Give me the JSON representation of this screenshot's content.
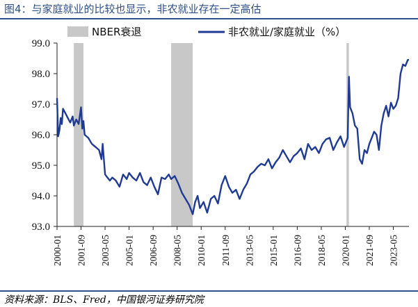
{
  "figure": {
    "title": "图4：与家庭就业的比较也显示，非农就业存在一定高估",
    "source": "资料来源：BLS、Fred，中国银河证券研究院"
  },
  "chart_data": {
    "type": "line",
    "xlabel": "",
    "ylabel": "",
    "ylim": [
      93.0,
      99.0
    ],
    "yticks": [
      "93.0",
      "94.0",
      "95.0",
      "96.0",
      "97.0",
      "98.0",
      "99.0"
    ],
    "xrange": [
      "2000-01",
      "2024-06"
    ],
    "xticks": [
      "2000-01",
      "2001-09",
      "2003-05",
      "2005-01",
      "2006-09",
      "2008-05",
      "2010-01",
      "2011-09",
      "2013-05",
      "2015-01",
      "2016-09",
      "2018-05",
      "2020-01",
      "2021-09",
      "2023-05"
    ],
    "grid": false,
    "legend_position": "top",
    "legend": [
      "NBER衰退",
      "非农就业/家庭就业（%）"
    ],
    "colors": {
      "series": "#1f3a93",
      "recession": "#c8c8c8",
      "accent": "#2e4f8a"
    },
    "recessions": [
      {
        "name": "NBER衰退",
        "start": "2001-03",
        "end": "2001-11"
      },
      {
        "name": "NBER衰退",
        "start": "2007-12",
        "end": "2009-06"
      },
      {
        "name": "NBER衰退",
        "start": "2020-02",
        "end": "2020-04"
      }
    ],
    "series": [
      {
        "name": "非农就业/家庭就业（%）",
        "points": [
          [
            "2000-01",
            97.2
          ],
          [
            "2000-02",
            95.95
          ],
          [
            "2000-03",
            96.15
          ],
          [
            "2000-04",
            96.55
          ],
          [
            "2000-05",
            96.35
          ],
          [
            "2000-06",
            96.85
          ],
          [
            "2000-08",
            96.7
          ],
          [
            "2000-10",
            96.55
          ],
          [
            "2000-12",
            96.4
          ],
          [
            "2001-02",
            96.6
          ],
          [
            "2001-03",
            96.3
          ],
          [
            "2001-05",
            96.5
          ],
          [
            "2001-07",
            96.35
          ],
          [
            "2001-09",
            96.9
          ],
          [
            "2001-10",
            96.2
          ],
          [
            "2001-11",
            96.45
          ],
          [
            "2001-12",
            96.0
          ],
          [
            "2002-03",
            95.9
          ],
          [
            "2002-06",
            95.7
          ],
          [
            "2002-09",
            95.6
          ],
          [
            "2002-12",
            95.5
          ],
          [
            "2003-02",
            95.2
          ],
          [
            "2003-03",
            95.7
          ],
          [
            "2003-05",
            94.7
          ],
          [
            "2003-07",
            94.6
          ],
          [
            "2003-09",
            94.5
          ],
          [
            "2003-11",
            94.6
          ],
          [
            "2004-02",
            94.5
          ],
          [
            "2004-05",
            94.3
          ],
          [
            "2004-08",
            94.7
          ],
          [
            "2004-11",
            94.55
          ],
          [
            "2005-01",
            94.75
          ],
          [
            "2005-04",
            94.6
          ],
          [
            "2005-07",
            94.5
          ],
          [
            "2005-10",
            94.75
          ],
          [
            "2006-01",
            94.45
          ],
          [
            "2006-04",
            94.35
          ],
          [
            "2006-07",
            94.6
          ],
          [
            "2006-10",
            94.3
          ],
          [
            "2007-01",
            94.05
          ],
          [
            "2007-04",
            94.6
          ],
          [
            "2007-07",
            94.55
          ],
          [
            "2007-10",
            94.7
          ],
          [
            "2007-12",
            94.55
          ],
          [
            "2008-03",
            94.65
          ],
          [
            "2008-06",
            94.4
          ],
          [
            "2008-09",
            94.1
          ],
          [
            "2008-12",
            93.9
          ],
          [
            "2009-03",
            93.7
          ],
          [
            "2009-06",
            93.4
          ],
          [
            "2009-08",
            93.8
          ],
          [
            "2009-10",
            94.0
          ],
          [
            "2009-12",
            93.6
          ],
          [
            "2010-03",
            93.8
          ],
          [
            "2010-06",
            93.45
          ],
          [
            "2010-09",
            93.9
          ],
          [
            "2010-12",
            94.0
          ],
          [
            "2011-03",
            93.75
          ],
          [
            "2011-06",
            94.35
          ],
          [
            "2011-09",
            94.65
          ],
          [
            "2011-12",
            94.3
          ],
          [
            "2012-03",
            94.1
          ],
          [
            "2012-06",
            94.2
          ],
          [
            "2012-09",
            93.9
          ],
          [
            "2012-12",
            94.2
          ],
          [
            "2013-03",
            94.4
          ],
          [
            "2013-06",
            94.7
          ],
          [
            "2013-09",
            94.8
          ],
          [
            "2013-12",
            94.95
          ],
          [
            "2014-03",
            95.05
          ],
          [
            "2014-06",
            95.0
          ],
          [
            "2014-09",
            95.2
          ],
          [
            "2014-12",
            94.9
          ],
          [
            "2015-03",
            95.1
          ],
          [
            "2015-06",
            95.25
          ],
          [
            "2015-09",
            95.5
          ],
          [
            "2015-12",
            95.3
          ],
          [
            "2016-03",
            95.1
          ],
          [
            "2016-06",
            95.3
          ],
          [
            "2016-09",
            95.4
          ],
          [
            "2016-12",
            95.55
          ],
          [
            "2017-03",
            95.2
          ],
          [
            "2017-06",
            95.7
          ],
          [
            "2017-09",
            95.5
          ],
          [
            "2017-12",
            95.6
          ],
          [
            "2018-03",
            95.4
          ],
          [
            "2018-06",
            95.7
          ],
          [
            "2018-09",
            95.85
          ],
          [
            "2018-12",
            95.9
          ],
          [
            "2019-03",
            95.5
          ],
          [
            "2019-06",
            95.75
          ],
          [
            "2019-09",
            95.95
          ],
          [
            "2019-12",
            95.6
          ],
          [
            "2020-03",
            95.9
          ],
          [
            "2020-04",
            97.9
          ],
          [
            "2020-05",
            96.9
          ],
          [
            "2020-07",
            96.7
          ],
          [
            "2020-09",
            96.3
          ],
          [
            "2020-11",
            96.2
          ],
          [
            "2021-01",
            95.2
          ],
          [
            "2021-03",
            95.05
          ],
          [
            "2021-05",
            95.5
          ],
          [
            "2021-07",
            95.4
          ],
          [
            "2021-09",
            95.7
          ],
          [
            "2021-11",
            95.9
          ],
          [
            "2022-01",
            96.1
          ],
          [
            "2022-03",
            96.0
          ],
          [
            "2022-05",
            95.5
          ],
          [
            "2022-07",
            96.3
          ],
          [
            "2022-09",
            96.7
          ],
          [
            "2022-11",
            96.95
          ],
          [
            "2023-01",
            96.6
          ],
          [
            "2023-03",
            97.05
          ],
          [
            "2023-05",
            96.85
          ],
          [
            "2023-07",
            96.95
          ],
          [
            "2023-09",
            97.2
          ],
          [
            "2023-11",
            98.0
          ],
          [
            "2024-01",
            98.3
          ],
          [
            "2024-03",
            98.25
          ],
          [
            "2024-05",
            98.45
          ],
          [
            "2024-06",
            98.45
          ]
        ]
      }
    ]
  }
}
